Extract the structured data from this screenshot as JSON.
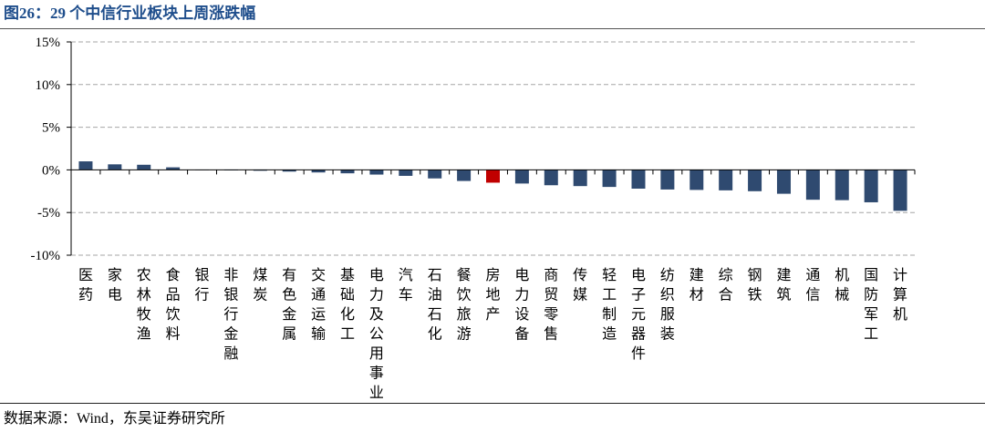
{
  "chart_data": {
    "type": "bar",
    "title": "图26：29 个中信行业板块上周涨跌幅",
    "xlabel": "",
    "ylabel": "",
    "categories": [
      "医药",
      "家电",
      "农林牧渔",
      "食品饮料",
      "银行",
      "非银行金融",
      "煤炭",
      "有色金属",
      "交通运输",
      "基础化工",
      "电力及公用事业",
      "汽车",
      "石油石化",
      "餐饮旅游",
      "房地产",
      "电力设备",
      "商贸零售",
      "传媒",
      "轻工制造",
      "电子元器件",
      "纺织服装",
      "建材",
      "综合",
      "钢铁",
      "建筑",
      "通信",
      "机械",
      "国防军工",
      "计算机"
    ],
    "values": [
      1.0,
      0.65,
      0.6,
      0.3,
      0.03,
      -0.05,
      -0.1,
      -0.2,
      -0.3,
      -0.4,
      -0.55,
      -0.7,
      -1.0,
      -1.3,
      -1.5,
      -1.6,
      -1.8,
      -1.9,
      -2.0,
      -2.2,
      -2.3,
      -2.35,
      -2.4,
      -2.5,
      -2.8,
      -3.5,
      -3.55,
      -3.8,
      -4.8
    ],
    "unit": "%",
    "ylim": [
      -10,
      15
    ],
    "yticks": [
      15,
      10,
      5,
      0,
      -5,
      -10
    ],
    "ytick_labels": [
      "15%",
      "10%",
      "5%",
      "0%",
      "-5%",
      "-10%"
    ],
    "grid": true,
    "legend": "none",
    "highlight_category": "房地产",
    "colors": {
      "bar": "#2F4A70",
      "highlight": "#C00000",
      "title": "#1F4E8C",
      "grid": "#A6A6A6"
    }
  },
  "footer": {
    "source": "数据来源：Wind，东吴证券研究所"
  }
}
